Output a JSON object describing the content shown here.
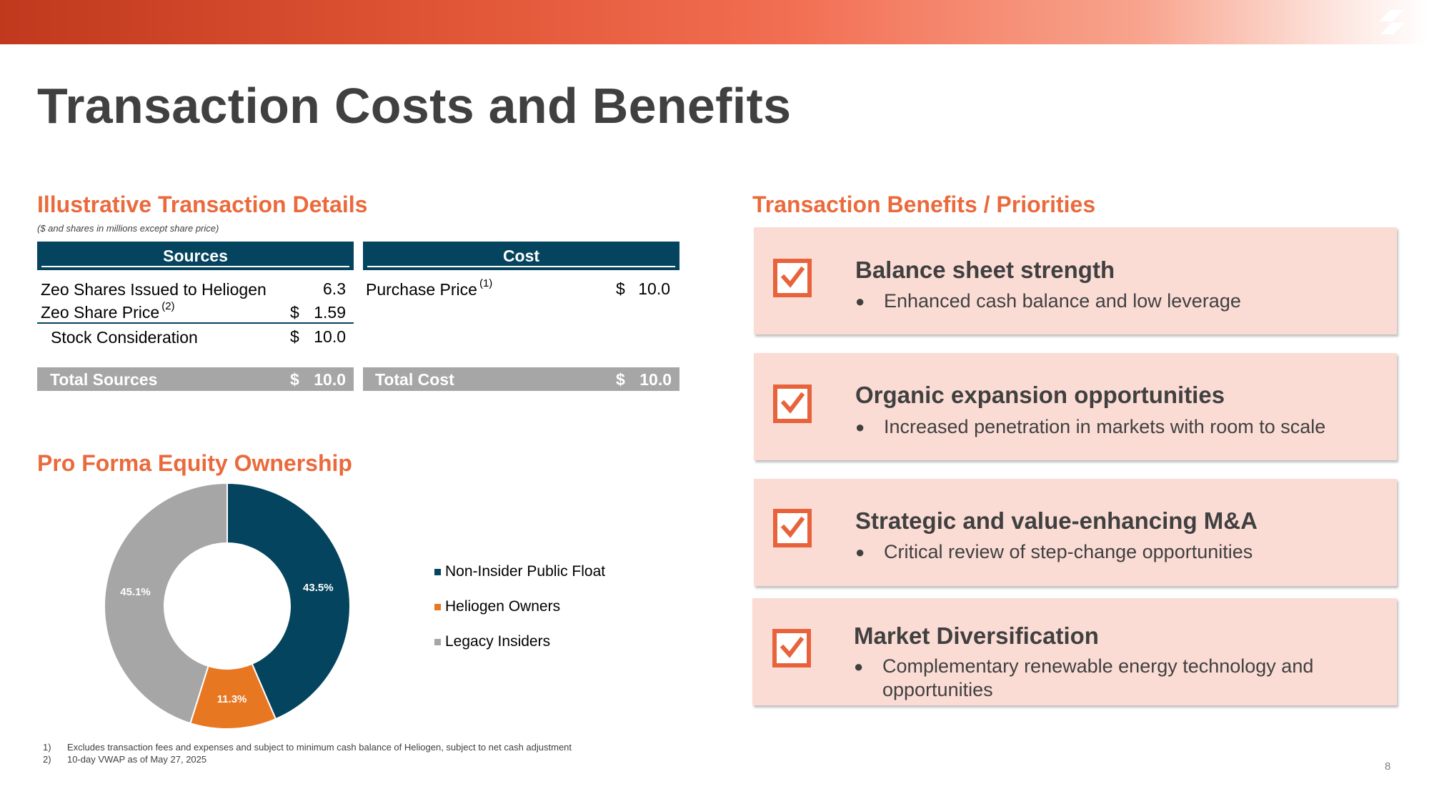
{
  "page": {
    "title": "Transaction Costs and Benefits",
    "page_number": "8"
  },
  "details": {
    "section_title": "Illustrative Transaction Details",
    "units_note": "($ and shares in millions except share price)",
    "sources": {
      "header": "Sources",
      "rows": [
        {
          "label": "Zeo Shares Issued to Heliogen",
          "currency": "",
          "value": "6.3"
        },
        {
          "label": "Zeo Share Price",
          "sup": "(2)",
          "currency": "$",
          "value": "1.59"
        },
        {
          "label": "Stock Consideration",
          "currency": "$",
          "value": "10.0"
        }
      ],
      "total_label": "Total Sources",
      "total_currency": "$",
      "total_value": "10.0"
    },
    "cost": {
      "header": "Cost",
      "rows": [
        {
          "label": "Purchase Price",
          "sup": "(1)",
          "currency": "$",
          "value": "10.0"
        }
      ],
      "total_label": "Total Cost",
      "total_currency": "$",
      "total_value": "10.0"
    }
  },
  "ownership": {
    "section_title": "Pro Forma Equity Ownership"
  },
  "chart_data": {
    "type": "pie",
    "donut": true,
    "title": "",
    "legend_position": "right",
    "series": [
      {
        "name": "Non-Insider Public Float",
        "value": 43.5,
        "label": "43.5%",
        "color": "#05445e"
      },
      {
        "name": "Heliogen Owners",
        "value": 11.3,
        "label": "11.3%",
        "color": "#e87722"
      },
      {
        "name": "Legacy Insiders",
        "value": 45.1,
        "label": "45.1%",
        "color": "#a6a6a6"
      }
    ]
  },
  "benefits": {
    "section_title": "Transaction Benefits / Priorities",
    "cards": [
      {
        "title": "Balance sheet strength",
        "bullet": "Enhanced cash balance and low leverage"
      },
      {
        "title": "Organic expansion opportunities",
        "bullet": "Increased penetration in markets with room to scale"
      },
      {
        "title": "Strategic and value-enhancing M&A",
        "bullet": "Critical review of step-change opportunities"
      },
      {
        "title": "Market Diversification",
        "bullet": "Complementary renewable energy technology and opportunities"
      }
    ],
    "bullet_glyph": "●",
    "icon": "checkbox-check-icon",
    "accent_color": "#e8633b",
    "card_color": "#fbdcd5"
  },
  "footnotes": [
    {
      "num": "1)",
      "text": "Excludes transaction fees and expenses and subject to minimum cash balance of Heliogen, subject to net cash adjustment"
    },
    {
      "num": "2)",
      "text": "10-day VWAP as of May 27, 2025"
    }
  ]
}
